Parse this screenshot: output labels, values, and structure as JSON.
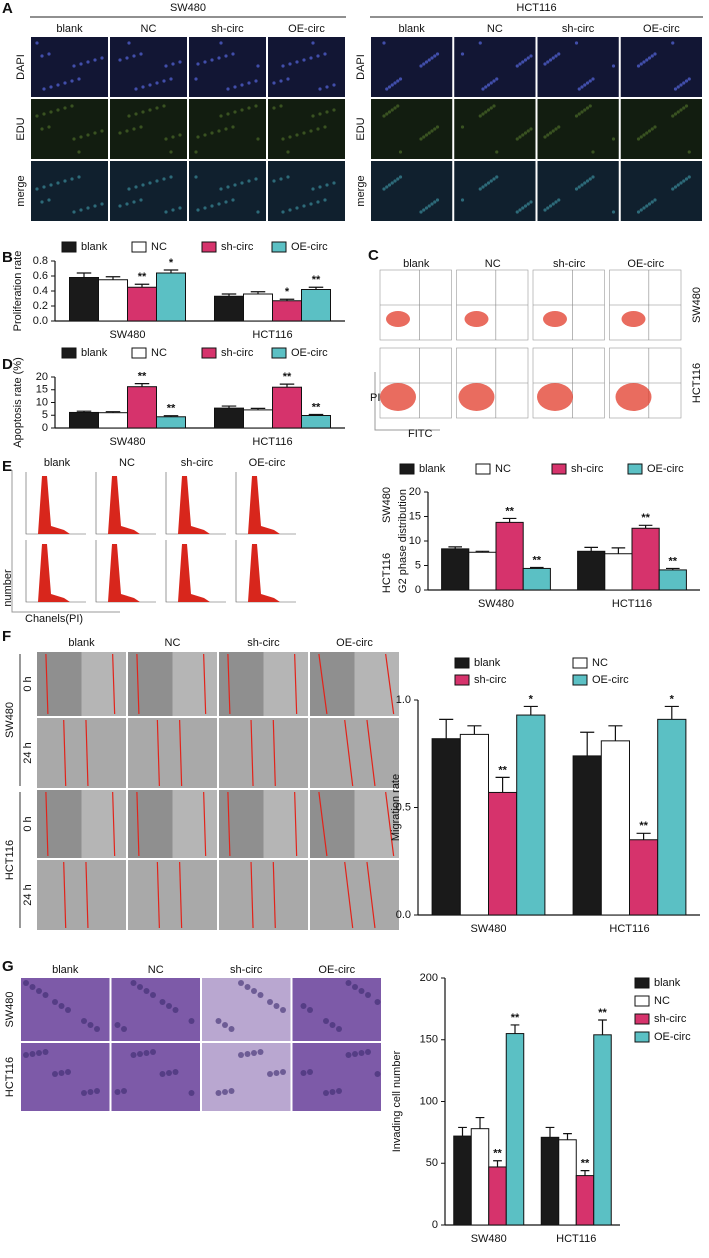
{
  "figure": {
    "panel_letters": [
      "A",
      "B",
      "C",
      "D",
      "E",
      "F",
      "G"
    ],
    "panel_a": {
      "groups": [
        "SW480",
        "HCT116"
      ],
      "columns": [
        "blank",
        "NC",
        "sh-circ",
        "OE-circ"
      ],
      "rows": [
        "DAPI",
        "EDU",
        "merge"
      ]
    },
    "panel_c": {
      "columns": [
        "blank",
        "NC",
        "sh-circ",
        "OE-circ"
      ],
      "rows": [
        "SW480",
        "HCT116"
      ],
      "y_label": "PI",
      "x_label": "FITC"
    },
    "panel_e": {
      "columns": [
        "blank",
        "NC",
        "sh-circ",
        "OE-circ"
      ],
      "rows": [
        "SW480",
        "HCT116"
      ],
      "y_label": "number",
      "x_label": "Chanels(PI)"
    },
    "panel_f": {
      "columns": [
        "blank",
        "NC",
        "sh-circ",
        "OE-circ"
      ],
      "groups": [
        "SW480",
        "HCT116"
      ],
      "times": [
        "0 h",
        "24 h"
      ]
    },
    "panel_g": {
      "columns": [
        "blank",
        "NC",
        "sh-circ",
        "OE-circ"
      ],
      "rows": [
        "SW480",
        "HCT116"
      ]
    }
  },
  "chart_data": [
    {
      "type": "bar",
      "y_label": "Proliferation rate",
      "legend": "top",
      "categories": [
        "SW480",
        "HCT116"
      ],
      "ylim": [
        0,
        0.8
      ],
      "yticks": [
        {
          "value": 0,
          "label": "0.0"
        },
        0.2,
        0.4,
        0.6,
        0.8
      ],
      "series": [
        {
          "name": "blank",
          "color": "#1a1a1a",
          "values": [
            0.58,
            0.33
          ],
          "errors": [
            0.06,
            0.03
          ],
          "annotations": [
            null,
            null
          ]
        },
        {
          "name": "NC",
          "color": "#ffffff",
          "values": [
            0.55,
            0.36
          ],
          "errors": [
            0.04,
            0.03
          ],
          "annotations": [
            null,
            null
          ]
        },
        {
          "name": "sh-circ",
          "color": "#d6336c",
          "values": [
            0.45,
            0.27
          ],
          "errors": [
            0.04,
            0.02
          ],
          "annotations": [
            "**",
            "*"
          ]
        },
        {
          "name": "OE-circ",
          "color": "#5bc0c4",
          "values": [
            0.64,
            0.42
          ],
          "errors": [
            0.04,
            0.03
          ],
          "annotations": [
            "*",
            "**"
          ]
        }
      ]
    },
    {
      "type": "bar",
      "y_label": "Apoptosis rate (%)",
      "legend": "top",
      "categories": [
        "SW480",
        "HCT116"
      ],
      "ylim": [
        0,
        20
      ],
      "yticks": [
        0,
        5,
        10,
        15,
        20
      ],
      "series": [
        {
          "name": "blank",
          "color": "#1a1a1a",
          "values": [
            6.1,
            7.8
          ],
          "errors": [
            0.5,
            0.8
          ],
          "annotations": [
            null,
            null
          ]
        },
        {
          "name": "NC",
          "color": "#ffffff",
          "values": [
            6.0,
            7.1
          ],
          "errors": [
            0.4,
            0.6
          ],
          "annotations": [
            null,
            null
          ]
        },
        {
          "name": "sh-circ",
          "color": "#d6336c",
          "values": [
            16.2,
            16.0
          ],
          "errors": [
            1.2,
            1.2
          ],
          "annotations": [
            "**",
            "**"
          ]
        },
        {
          "name": "OE-circ",
          "color": "#5bc0c4",
          "values": [
            4.4,
            4.9
          ],
          "errors": [
            0.4,
            0.4
          ],
          "annotations": [
            "**",
            "**"
          ]
        }
      ]
    },
    {
      "type": "bar",
      "y_label": "G2 phase distribution",
      "legend": "top",
      "categories": [
        "SW480",
        "HCT116"
      ],
      "ylim": [
        0,
        20
      ],
      "yticks": [
        0,
        5,
        10,
        15,
        20
      ],
      "series": [
        {
          "name": "blank",
          "color": "#1a1a1a",
          "values": [
            8.4,
            7.9
          ],
          "errors": [
            0.4,
            0.8
          ],
          "annotations": [
            null,
            null
          ]
        },
        {
          "name": "NC",
          "color": "#ffffff",
          "values": [
            7.7,
            7.4
          ],
          "errors": [
            0.2,
            1.2
          ],
          "annotations": [
            null,
            null
          ]
        },
        {
          "name": "sh-circ",
          "color": "#d6336c",
          "values": [
            13.8,
            12.6
          ],
          "errors": [
            0.8,
            0.6
          ],
          "annotations": [
            "**",
            "**"
          ]
        },
        {
          "name": "OE-circ",
          "color": "#5bc0c4",
          "values": [
            4.4,
            4.1
          ],
          "errors": [
            0.2,
            0.3
          ],
          "annotations": [
            "**",
            "**"
          ]
        }
      ]
    },
    {
      "type": "bar",
      "y_label": "Migration rate",
      "legend": "top",
      "categories": [
        "SW480",
        "HCT116"
      ],
      "ylim": [
        0,
        1
      ],
      "yticks": [
        {
          "value": 0,
          "label": "0.0"
        },
        0.5,
        {
          "value": 1,
          "label": "1.0"
        }
      ],
      "series": [
        {
          "name": "blank",
          "color": "#1a1a1a",
          "values": [
            0.82,
            0.74
          ],
          "errors": [
            0.09,
            0.11
          ],
          "annotations": [
            null,
            null
          ]
        },
        {
          "name": "NC",
          "color": "#ffffff",
          "values": [
            0.84,
            0.81
          ],
          "errors": [
            0.04,
            0.07
          ],
          "annotations": [
            null,
            null
          ]
        },
        {
          "name": "sh-circ",
          "color": "#d6336c",
          "values": [
            0.57,
            0.35
          ],
          "errors": [
            0.07,
            0.03
          ],
          "annotations": [
            "**",
            "**"
          ]
        },
        {
          "name": "OE-circ",
          "color": "#5bc0c4",
          "values": [
            0.93,
            0.91
          ],
          "errors": [
            0.04,
            0.06
          ],
          "annotations": [
            "*",
            "*"
          ]
        }
      ]
    },
    {
      "type": "bar",
      "y_label": "Invading cell number",
      "legend": "right",
      "categories": [
        "SW480",
        "HCT116"
      ],
      "ylim": [
        0,
        200
      ],
      "yticks": [
        0,
        50,
        100,
        150,
        200
      ],
      "series": [
        {
          "name": "blank",
          "color": "#1a1a1a",
          "values": [
            72,
            71
          ],
          "errors": [
            7,
            8
          ],
          "annotations": [
            null,
            null
          ]
        },
        {
          "name": "NC",
          "color": "#ffffff",
          "values": [
            78,
            69
          ],
          "errors": [
            9,
            5
          ],
          "annotations": [
            null,
            null
          ]
        },
        {
          "name": "sh-circ",
          "color": "#d6336c",
          "values": [
            47,
            40
          ],
          "errors": [
            5,
            4
          ],
          "annotations": [
            "**",
            "**"
          ]
        },
        {
          "name": "OE-circ",
          "color": "#5bc0c4",
          "values": [
            155,
            154
          ],
          "errors": [
            7,
            12
          ],
          "annotations": [
            "**",
            "**"
          ]
        }
      ]
    }
  ]
}
